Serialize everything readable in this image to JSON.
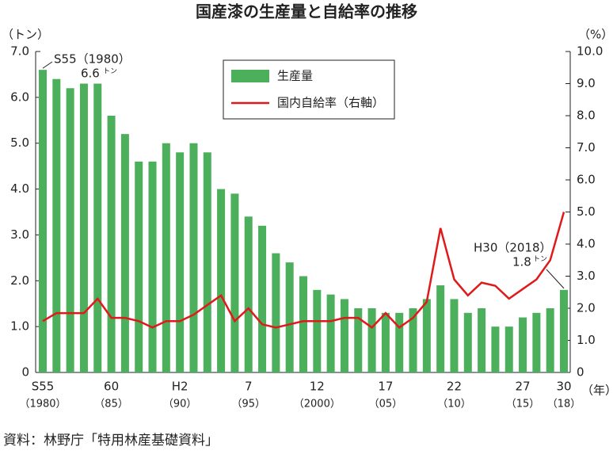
{
  "chart_data": {
    "type": "bar",
    "title": "国産漆の生産量と自給率の推移",
    "y_unit": "（トン）",
    "y2_unit": "（%）",
    "x_unit": "（年）",
    "source": "資料：林野庁「特用林産基礎資料」",
    "categories": [
      "S55",
      null,
      null,
      null,
      null,
      "60",
      null,
      null,
      null,
      null,
      "H2",
      null,
      null,
      null,
      null,
      "7",
      null,
      null,
      null,
      null,
      "12",
      null,
      null,
      null,
      null,
      "17",
      null,
      null,
      null,
      null,
      "22",
      null,
      null,
      null,
      null,
      "27",
      null,
      null,
      "30"
    ],
    "category_sublabels": [
      "（1980）",
      null,
      null,
      null,
      null,
      "（85）",
      null,
      null,
      null,
      null,
      "（90）",
      null,
      null,
      null,
      null,
      "（95）",
      null,
      null,
      null,
      null,
      "（2000）",
      null,
      null,
      null,
      null,
      "（05）",
      null,
      null,
      null,
      null,
      "（10）",
      null,
      null,
      null,
      null,
      "（15）",
      null,
      null,
      "（18）"
    ],
    "series": [
      {
        "name": "生産量",
        "type": "bar",
        "color": "#4caf5b",
        "values": [
          6.6,
          6.4,
          6.2,
          6.3,
          6.3,
          5.6,
          5.2,
          4.6,
          4.6,
          5.0,
          4.8,
          5.0,
          4.8,
          4.0,
          3.9,
          3.4,
          3.2,
          2.6,
          2.4,
          2.1,
          1.8,
          1.7,
          1.6,
          1.4,
          1.4,
          1.3,
          1.3,
          1.4,
          1.6,
          1.9,
          1.6,
          1.3,
          1.4,
          1.0,
          1.0,
          1.2,
          1.3,
          1.4,
          1.8
        ]
      },
      {
        "name": "国内自給率（右軸）",
        "type": "line",
        "axis": "y2",
        "color": "#e01a1a",
        "values": [
          1.6,
          1.85,
          1.85,
          1.85,
          2.3,
          1.7,
          1.7,
          1.6,
          1.4,
          1.6,
          1.6,
          1.8,
          2.1,
          2.4,
          1.6,
          2.0,
          1.5,
          1.4,
          1.5,
          1.6,
          1.6,
          1.6,
          1.7,
          1.7,
          1.4,
          1.85,
          1.4,
          1.7,
          2.2,
          4.5,
          2.9,
          2.4,
          2.8,
          2.7,
          2.3,
          2.6,
          2.9,
          3.5,
          5.0
        ]
      }
    ],
    "ylim": [
      0,
      7
    ],
    "yticks": [
      0,
      {
        "value": 1,
        "label": "1.0"
      },
      {
        "value": 2,
        "label": "2.0"
      },
      {
        "value": 3,
        "label": "3.0"
      },
      {
        "value": 4,
        "label": "4.0"
      },
      {
        "value": 5,
        "label": "5.0"
      },
      {
        "value": 6,
        "label": "6.0"
      },
      {
        "value": 7,
        "label": "7.0"
      }
    ],
    "y2lim": [
      0,
      10
    ],
    "y2ticks": [
      0,
      {
        "value": 1,
        "label": "1.0"
      },
      {
        "value": 2,
        "label": "2.0"
      },
      {
        "value": 3,
        "label": "3.0"
      },
      {
        "value": 4,
        "label": "4.0"
      },
      {
        "value": 5,
        "label": "5.0"
      },
      {
        "value": 6,
        "label": "6.0"
      },
      {
        "value": 7,
        "label": "7.0"
      },
      {
        "value": 8,
        "label": "8.0"
      },
      {
        "value": 9,
        "label": "9.0"
      },
      {
        "value": 10,
        "label": "10.0"
      }
    ],
    "legend": "top-center",
    "annotations": [
      {
        "text": "S55（1980）",
        "value_text": "6.6",
        "unit": "トン",
        "index": 0
      },
      {
        "text": "H30（2018）",
        "value_text": "1.8",
        "unit": "トン",
        "index": 38
      }
    ]
  }
}
